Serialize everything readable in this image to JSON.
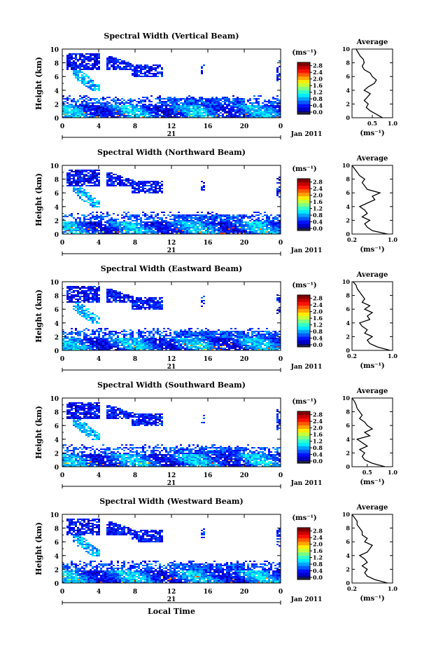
{
  "chart_data": [
    {
      "type": "heatmap",
      "title": "Spectral Width (Vertical Beam)",
      "ylabel": "Height (km)",
      "ylim": [
        0,
        10
      ],
      "yticks": [
        "0",
        "2",
        "4",
        "6",
        "8",
        "10"
      ],
      "xlim": [
        0,
        24
      ],
      "xticks": [
        "0",
        "4",
        "8",
        "12",
        "16",
        "20",
        "0"
      ],
      "day_label": "21",
      "date_label": "Jan 2011",
      "colorbar": {
        "unit": "(ms⁻¹)",
        "ticks": [
          "0.0",
          "0.4",
          "0.8",
          "1.2",
          "1.6",
          "2.0",
          "2.4",
          "2.8"
        ],
        "range": [
          0,
          3.0
        ]
      },
      "average": {
        "title": "Average",
        "xlabel": "(ms⁻¹)",
        "xticks": [
          "0.5",
          "1.0"
        ],
        "xticks_at": [
          0.5,
          1.0
        ],
        "xlim": [
          0,
          1.0
        ],
        "yticks": [
          "0",
          "2",
          "4",
          "6",
          "8",
          "10"
        ],
        "height_km": [
          0,
          0.5,
          1,
          1.5,
          2,
          2.5,
          3,
          3.5,
          4,
          4.5,
          5,
          5.5,
          6,
          6.5,
          7,
          7.5,
          8,
          8.5,
          9,
          9.5,
          10
        ],
        "width": [
          0.75,
          0.6,
          0.45,
          0.35,
          0.4,
          0.3,
          0.38,
          0.45,
          0.3,
          0.4,
          0.55,
          0.6,
          0.5,
          0.45,
          0.3,
          0.25,
          0.3,
          0.28,
          0.2,
          0.15,
          0.1
        ]
      }
    },
    {
      "type": "heatmap",
      "title": "Spectral Width (Northward Beam)",
      "ylabel": "Height (km)",
      "ylim": [
        0,
        10
      ],
      "yticks": [
        "0",
        "2",
        "4",
        "6",
        "8",
        "10"
      ],
      "xlim": [
        0,
        24
      ],
      "xticks": [
        "0",
        "4",
        "8",
        "12",
        "16",
        "20",
        "0"
      ],
      "day_label": "21",
      "date_label": "Jan 2011",
      "colorbar": {
        "unit": "(ms⁻¹)",
        "ticks": [
          "0.0",
          "0.4",
          "0.8",
          "1.2",
          "1.6",
          "2.0",
          "2.4",
          "2.8"
        ],
        "range": [
          0,
          3.0
        ]
      },
      "average": {
        "title": "Average",
        "xlabel": "(ms⁻¹)",
        "xticks": [
          "0.2",
          "1.0"
        ],
        "xticks_at": [
          0.2,
          1.0
        ],
        "xlim": [
          0.2,
          1.0
        ],
        "yticks": [
          "0",
          "2",
          "4",
          "6",
          "8",
          "10"
        ],
        "height_km": [
          0,
          0.5,
          1,
          1.5,
          2,
          2.5,
          3,
          3.5,
          4,
          4.5,
          5,
          5.5,
          6,
          6.5,
          7,
          7.5,
          8,
          8.5,
          9,
          9.5,
          10
        ],
        "width": [
          0.9,
          0.6,
          0.5,
          0.45,
          0.55,
          0.4,
          0.5,
          0.45,
          0.35,
          0.5,
          0.65,
          0.6,
          0.75,
          0.5,
          0.45,
          0.4,
          0.45,
          0.35,
          0.3,
          0.25,
          0.2
        ]
      }
    },
    {
      "type": "heatmap",
      "title": "Spectral Width (Eastward Beam)",
      "ylabel": "Height (km)",
      "ylim": [
        0,
        10
      ],
      "yticks": [
        "0",
        "2",
        "4",
        "6",
        "8",
        "10"
      ],
      "xlim": [
        0,
        24
      ],
      "xticks": [
        "0",
        "4",
        "8",
        "12",
        "16",
        "20",
        "0"
      ],
      "day_label": "21",
      "date_label": "Jan 2011",
      "colorbar": {
        "unit": "(ms⁻¹)",
        "ticks": [
          "0.0",
          "0.4",
          "0.8",
          "1.2",
          "1.6",
          "2.0",
          "2.4",
          "2.8"
        ],
        "range": [
          0,
          3.0
        ]
      },
      "average": {
        "title": "Average",
        "xlabel": "(ms⁻¹)",
        "xticks": [
          "0.2",
          "1.0"
        ],
        "xticks_at": [
          0.2,
          1.0
        ],
        "xlim": [
          0.2,
          1.0
        ],
        "yticks": [
          "0",
          "2",
          "4",
          "6",
          "8",
          "10"
        ],
        "height_km": [
          0,
          0.5,
          1,
          1.5,
          2,
          2.5,
          3,
          3.5,
          4,
          4.5,
          5,
          5.5,
          6,
          6.5,
          7,
          7.5,
          8,
          8.5,
          9,
          9.5,
          10
        ],
        "width": [
          0.95,
          0.7,
          0.55,
          0.5,
          0.6,
          0.45,
          0.5,
          0.4,
          0.35,
          0.55,
          0.5,
          0.6,
          0.45,
          0.55,
          0.4,
          0.45,
          0.4,
          0.35,
          0.3,
          0.28,
          0.22
        ]
      }
    },
    {
      "type": "heatmap",
      "title": "Spectral Width (Southward Beam)",
      "ylabel": "Height (km)",
      "ylim": [
        0,
        10
      ],
      "yticks": [
        "0",
        "2",
        "4",
        "6",
        "8",
        "10"
      ],
      "xlim": [
        0,
        24
      ],
      "xticks": [
        "0",
        "4",
        "8",
        "12",
        "16",
        "20",
        "0"
      ],
      "day_label": "21",
      "date_label": "Jan 2011",
      "colorbar": {
        "unit": "(ms⁻¹)",
        "ticks": [
          "0.0",
          "0.4",
          "0.8",
          "1.2",
          "1.6",
          "2.0",
          "2.4",
          "2.8"
        ],
        "range": [
          0,
          3.0
        ]
      },
      "average": {
        "title": "Average",
        "xlabel": "(ms⁻¹)",
        "xticks": [
          "0.5",
          "1.0"
        ],
        "xticks_at": [
          0.5,
          1.0
        ],
        "xlim": [
          0.2,
          1.0
        ],
        "yticks": [
          "0",
          "2",
          "4",
          "6",
          "8",
          "10"
        ],
        "height_km": [
          0,
          0.5,
          1,
          1.5,
          2,
          2.5,
          3,
          3.5,
          4,
          4.5,
          5,
          5.5,
          6,
          6.5,
          7,
          7.5,
          8,
          8.5,
          9,
          9.5,
          10
        ],
        "width": [
          0.85,
          0.6,
          0.45,
          0.4,
          0.45,
          0.35,
          0.5,
          0.4,
          0.3,
          0.55,
          0.45,
          0.6,
          0.5,
          0.45,
          0.35,
          0.4,
          0.35,
          0.3,
          0.28,
          0.25,
          0.2
        ]
      }
    },
    {
      "type": "heatmap",
      "title": "Spectral Width (Westward Beam)",
      "ylabel": "Height (km)",
      "ylim": [
        0,
        10
      ],
      "yticks": [
        "0",
        "2",
        "4",
        "6",
        "8",
        "10"
      ],
      "xlim": [
        0,
        24
      ],
      "xticks": [
        "0",
        "4",
        "8",
        "12",
        "16",
        "20",
        "0"
      ],
      "day_label": "21",
      "date_label": "Jan 2011",
      "xlabel": "Local Time",
      "colorbar": {
        "unit": "(ms⁻¹)",
        "ticks": [
          "0.0",
          "0.4",
          "0.8",
          "1.2",
          "1.6",
          "2.0",
          "2.4",
          "2.8"
        ],
        "range": [
          0,
          3.0
        ]
      },
      "average": {
        "title": "Average",
        "xlabel": "(ms⁻¹)",
        "xticks": [
          "0.2",
          "1.0"
        ],
        "xticks_at": [
          0.2,
          1.0
        ],
        "xlim": [
          0.2,
          1.0
        ],
        "yticks": [
          "0",
          "2",
          "4",
          "6",
          "8",
          "10"
        ],
        "height_km": [
          0,
          0.5,
          1,
          1.5,
          2,
          2.5,
          3,
          3.5,
          4,
          4.5,
          5,
          5.5,
          6,
          6.5,
          7,
          7.5,
          8,
          8.5,
          9,
          9.5,
          10
        ],
        "width": [
          0.9,
          0.65,
          0.5,
          0.45,
          0.5,
          0.4,
          0.5,
          0.45,
          0.35,
          0.5,
          0.55,
          0.6,
          0.45,
          0.5,
          0.4,
          0.4,
          0.35,
          0.3,
          0.3,
          0.25,
          0.2
        ]
      }
    }
  ]
}
